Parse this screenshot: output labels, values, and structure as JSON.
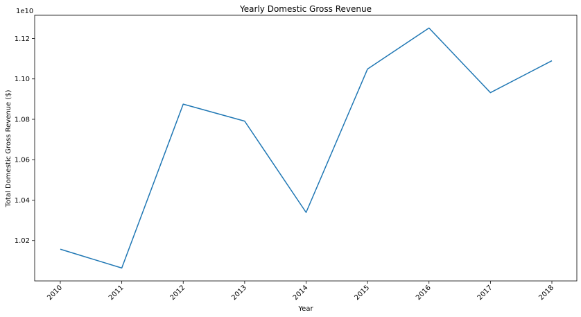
{
  "chart_data": {
    "type": "line",
    "title": "Yearly Domestic Gross Revenue",
    "xlabel": "Year",
    "ylabel": "Total Domestic Gross Revenue ($)",
    "y_offset_text": "1e10",
    "x": [
      "2010",
      "2011",
      "2012",
      "2013",
      "2014",
      "2015",
      "2016",
      "2017",
      "2018"
    ],
    "series": [
      {
        "values": [
          1.0157,
          1.0064,
          1.0875,
          1.0791,
          1.0339,
          1.1049,
          1.1252,
          1.0932,
          1.109
        ]
      }
    ],
    "y_ticks": [
      "1.02",
      "1.04",
      "1.06",
      "1.08",
      "1.10",
      "1.12"
    ],
    "ylim": [
      1.0,
      1.1315
    ],
    "x_tick_rotation_deg": 45,
    "grid": false,
    "line_color": "#1f77b4"
  }
}
